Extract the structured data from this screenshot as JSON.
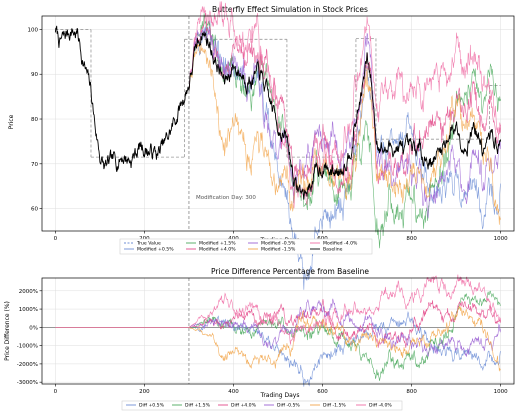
{
  "chart_data": [
    {
      "type": "line",
      "title": "Butterfly Effect Simulation in Stock Prices",
      "xlabel": "Trading Days",
      "ylabel": "Price",
      "xlim": [
        -30,
        1030
      ],
      "ylim": [
        55,
        103
      ],
      "xticks": [
        0,
        200,
        400,
        600,
        800,
        1000
      ],
      "yticks": [
        60,
        70,
        80,
        90,
        100
      ],
      "grid": true,
      "legend_position": "bottom-center",
      "annotation": {
        "text": "Modification Day: 300",
        "x": 300
      },
      "true_value": [
        {
          "x": [
            0,
            80
          ],
          "y": [
            100,
            100
          ]
        },
        {
          "x": [
            80,
            80
          ],
          "y": [
            100,
            71.5
          ]
        },
        {
          "x": [
            80,
            290
          ],
          "y": [
            71.5,
            71.5
          ]
        },
        {
          "x": [
            290,
            290
          ],
          "y": [
            71.5,
            97.8
          ]
        },
        {
          "x": [
            290,
            520
          ],
          "y": [
            97.8,
            97.8
          ]
        },
        {
          "x": [
            520,
            520
          ],
          "y": [
            97.8,
            71.5
          ]
        },
        {
          "x": [
            520,
            675
          ],
          "y": [
            71.5,
            71.5
          ]
        },
        {
          "x": [
            675,
            675
          ],
          "y": [
            71.5,
            98
          ]
        },
        {
          "x": [
            675,
            720
          ],
          "y": [
            98,
            98
          ]
        },
        {
          "x": [
            720,
            720
          ],
          "y": [
            98,
            75.5
          ]
        },
        {
          "x": [
            720,
            975
          ],
          "y": [
            75.5,
            75.5
          ]
        },
        {
          "x": [
            975,
            975
          ],
          "y": [
            75.5,
            87.5
          ]
        },
        {
          "x": [
            975,
            1000
          ],
          "y": [
            87.5,
            87.5
          ]
        }
      ],
      "baseline_anchors": {
        "x": [
          0,
          10,
          20,
          35,
          50,
          60,
          70,
          80,
          90,
          100,
          110,
          130,
          150,
          170,
          190,
          210,
          230,
          250,
          270,
          285,
          300,
          315,
          330,
          345,
          360,
          380,
          400,
          420,
          440,
          460,
          480,
          500,
          520,
          540,
          560,
          580,
          600,
          620,
          640,
          660,
          680,
          700,
          710,
          720,
          740,
          760,
          780,
          800,
          820,
          840,
          860,
          880,
          900,
          920,
          940,
          960,
          980,
          1000
        ],
        "y": [
          100,
          97,
          98,
          100,
          99,
          94,
          90,
          86,
          78,
          72,
          69,
          70,
          72,
          71,
          74,
          73,
          72,
          75,
          80,
          84,
          88,
          95,
          100,
          97,
          93,
          88,
          92,
          90,
          89,
          90,
          84,
          79,
          75,
          65,
          63,
          67,
          70,
          68,
          69,
          73,
          82,
          93,
          88,
          76,
          73,
          74,
          73,
          72,
          73,
          71,
          72,
          76,
          79,
          74,
          79,
          73,
          76,
          74
        ]
      },
      "modified_offsets": [
        0.5,
        1.5,
        -0.5,
        -1.5,
        4.0,
        -4.0
      ],
      "series": [
        {
          "name": "True Value",
          "color": "#6f8fd6",
          "style": "dashed"
        },
        {
          "name": "Modified +0.5%",
          "color": "#6f8fd6"
        },
        {
          "name": "Modified +1.5%",
          "color": "#4caa5e"
        },
        {
          "name": "Modified +4.0%",
          "color": "#e34989"
        },
        {
          "name": "Modified -0.5%",
          "color": "#9b63d3"
        },
        {
          "name": "Modified -1.5%",
          "color": "#f2a54a"
        },
        {
          "name": "Modified -4.0%",
          "color": "#ef6da5"
        },
        {
          "name": "Baseline",
          "color": "#000000"
        }
      ]
    },
    {
      "type": "line",
      "title": "Price Difference Percentage from Baseline",
      "xlabel": "Trading Days",
      "ylabel": "Price Difference (%)",
      "xlim": [
        -30,
        1030
      ],
      "ylim": [
        -3100,
        2700
      ],
      "xticks": [
        0,
        200,
        400,
        600,
        800,
        1000
      ],
      "yticks": [
        -3000,
        -2000,
        -1000,
        0,
        1000,
        2000
      ],
      "ytick_labels": [
        "-3000%",
        "-2000%",
        "-1000%",
        "0%",
        "1000%",
        "2000%"
      ],
      "grid": true,
      "legend_position": "bottom-center",
      "series": [
        {
          "name": "Diff +0.5%",
          "color": "#6f8fd6"
        },
        {
          "name": "Diff +1.5%",
          "color": "#4caa5e"
        },
        {
          "name": "Diff +4.0%",
          "color": "#e34989"
        },
        {
          "name": "Diff -0.5%",
          "color": "#9b63d3"
        },
        {
          "name": "Diff -1.5%",
          "color": "#f2a54a"
        },
        {
          "name": "Diff -4.0%",
          "color": "#ef6da5"
        }
      ]
    }
  ]
}
